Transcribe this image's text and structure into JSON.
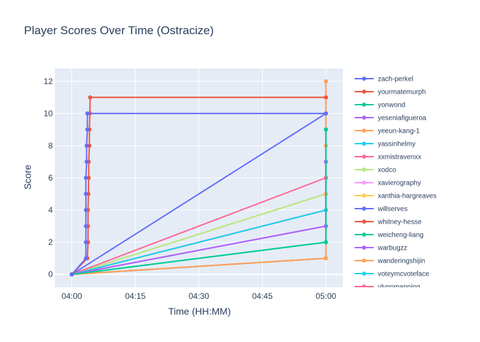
{
  "chart_data": {
    "type": "line",
    "title": "Player Scores Over Time (Ostracize)",
    "xlabel": "Time (HH:MM)",
    "ylabel": "Score",
    "x_ticks": [
      "04:00",
      "04:15",
      "04:30",
      "04:45",
      "05:00"
    ],
    "y_ticks": [
      0,
      2,
      4,
      6,
      8,
      10,
      12
    ],
    "xlim": [
      "03:56",
      "05:04"
    ],
    "ylim": [
      -0.8,
      12.8
    ],
    "grid": true,
    "legend_position": "right",
    "background_color": "#E5ECF6",
    "series": [
      {
        "name": "zach-perkel",
        "color": "#636EFA",
        "points": [
          [
            "04:00",
            0
          ],
          [
            "04:03:20",
            1
          ],
          [
            "04:03:20",
            2
          ],
          [
            "04:03:20",
            3
          ],
          [
            "04:03:20",
            4
          ],
          [
            "04:03:20",
            5
          ],
          [
            "04:03:20",
            6
          ],
          [
            "04:03:30",
            7
          ],
          [
            "04:03:30",
            8
          ],
          [
            "04:03:40",
            9
          ],
          [
            "04:03:40",
            10
          ],
          [
            "05:00",
            10
          ]
        ]
      },
      {
        "name": "yourmatemurph",
        "color": "#EF553B",
        "points": [
          [
            "04:00",
            0
          ],
          [
            "04:03:40",
            1
          ],
          [
            "04:03:50",
            2
          ],
          [
            "04:03:50",
            3
          ],
          [
            "04:03:50",
            4
          ],
          [
            "04:03:55",
            5
          ],
          [
            "04:04:00",
            6
          ],
          [
            "04:04:00",
            7
          ],
          [
            "04:04:10",
            8
          ],
          [
            "04:04:10",
            9
          ],
          [
            "04:04:15",
            10
          ],
          [
            "04:04:20",
            11
          ],
          [
            "05:00",
            11
          ]
        ]
      },
      {
        "name": "yonwond",
        "color": "#00CC96",
        "points": [
          [
            "04:00",
            0
          ],
          [
            "05:00",
            2
          ],
          [
            "05:00",
            9
          ]
        ]
      },
      {
        "name": "yeseniafigueroa",
        "color": "#AB63FA",
        "points": [
          [
            "04:00",
            0
          ],
          [
            "05:00",
            3
          ],
          [
            "05:00",
            7
          ]
        ]
      },
      {
        "name": "yeeun-kang-1",
        "color": "#FFA15A",
        "points": [
          [
            "04:00",
            0
          ],
          [
            "05:00",
            1
          ],
          [
            "05:00",
            5
          ],
          [
            "05:00",
            8
          ],
          [
            "05:00",
            11
          ],
          [
            "05:00",
            12
          ]
        ]
      },
      {
        "name": "yassinhelmy",
        "color": "#19D3F3",
        "points": [
          [
            "04:00",
            0
          ],
          [
            "05:00",
            4
          ]
        ]
      },
      {
        "name": "xxmistravenxx",
        "color": "#FF6692",
        "points": [
          [
            "04:00",
            0
          ],
          [
            "05:00",
            6
          ]
        ]
      },
      {
        "name": "xodco",
        "color": "#B6E880",
        "points": [
          [
            "04:00",
            0
          ],
          [
            "05:00",
            5
          ]
        ]
      },
      {
        "name": "xavierography",
        "color": "#FF97FF",
        "points": [
          [
            "04:00",
            0
          ],
          [
            "05:00",
            3
          ]
        ]
      },
      {
        "name": "xanthia-hargreaves",
        "color": "#FECB52",
        "points": [
          [
            "04:00",
            0
          ],
          [
            "05:00",
            5
          ]
        ]
      },
      {
        "name": "willserves",
        "color": "#636EFA",
        "points": [
          [
            "04:00",
            0
          ],
          [
            "05:00",
            10
          ]
        ]
      },
      {
        "name": "whitney-hesse",
        "color": "#EF553B",
        "points": [
          [
            "04:00",
            0
          ],
          [
            "05:00",
            4
          ],
          [
            "05:00",
            6
          ]
        ]
      },
      {
        "name": "weicheng-liang",
        "color": "#00CC96",
        "points": [
          [
            "04:00",
            0
          ],
          [
            "05:00",
            2
          ],
          [
            "05:00",
            9
          ]
        ]
      },
      {
        "name": "warbugzz",
        "color": "#AB63FA",
        "points": [
          [
            "04:00",
            0
          ],
          [
            "05:00",
            3
          ],
          [
            "05:00",
            7
          ]
        ]
      },
      {
        "name": "wanderingshijin",
        "color": "#FFA15A",
        "points": [
          [
            "04:00",
            0
          ],
          [
            "05:00",
            1
          ],
          [
            "05:00",
            12
          ]
        ]
      },
      {
        "name": "voteymcvoteface",
        "color": "#19D3F3",
        "points": [
          [
            "04:00",
            0
          ],
          [
            "05:00",
            1
          ]
        ]
      },
      {
        "name": "vlynnmanning",
        "color": "#FF6692",
        "points": [
          [
            "04:00",
            0
          ],
          [
            "05:00",
            1
          ]
        ]
      }
    ]
  }
}
